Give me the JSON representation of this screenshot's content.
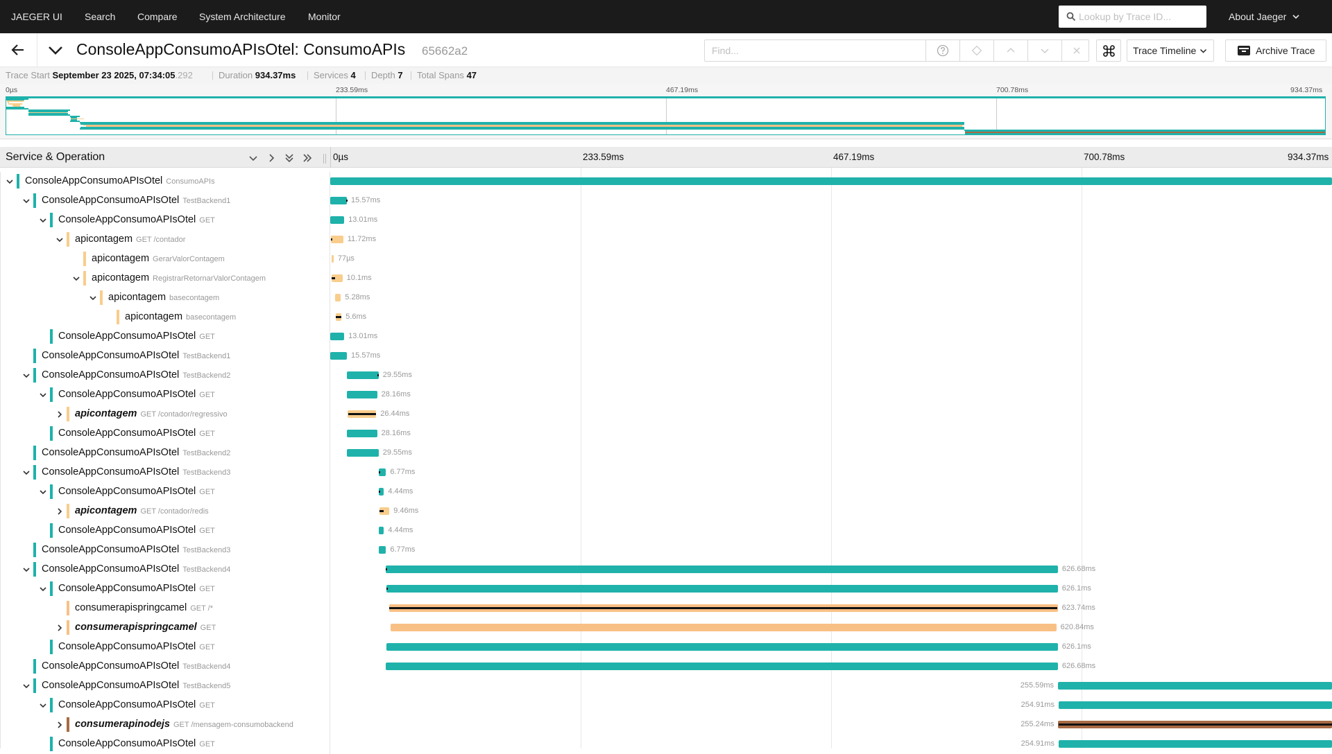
{
  "nav": {
    "brand": "JAEGER UI",
    "search": "Search",
    "compare": "Compare",
    "system_architecture": "System Architecture",
    "monitor": "Monitor",
    "lookup_placeholder": "Lookup by Trace ID...",
    "about": "About Jaeger"
  },
  "trace": {
    "title": "ConsoleAppConsumoAPIsOtel: ConsumoAPIs",
    "id": "65662a2",
    "find_placeholder": "Find...",
    "view_mode": "Trace Timeline",
    "archive_label": "Archive Trace"
  },
  "summary": {
    "trace_start_label": "Trace Start",
    "trace_start_value": "September 23 2025, 07:34:05",
    "trace_start_ms": ".292",
    "duration_label": "Duration",
    "duration_value": "934.37ms",
    "services_label": "Services",
    "services_value": "4",
    "depth_label": "Depth",
    "depth_value": "7",
    "total_spans_label": "Total Spans",
    "total_spans_value": "47"
  },
  "timeline": {
    "total_ms": 934.37,
    "ticks": [
      "0µs",
      "233.59ms",
      "467.19ms",
      "700.78ms",
      "934.37ms"
    ],
    "header_label": "Service & Operation"
  },
  "colors": {
    "console": "#1fb2aa",
    "apicontagem": "#f9cd8c",
    "consumerapispringcamel": "#f9c085",
    "consumerapinodejs": "#a86b44"
  },
  "spans": [
    {
      "depth": 0,
      "chevron": "open",
      "service": "ConsoleAppConsumoAPIsOtel",
      "op": "ConsumoAPIs",
      "svc": "console",
      "err": false,
      "start": 0,
      "dur": 934.37,
      "label": ""
    },
    {
      "depth": 1,
      "chevron": "open",
      "service": "ConsoleAppConsumoAPIsOtel",
      "op": "TestBackend1",
      "svc": "console",
      "err": false,
      "start": 0,
      "dur": 15.57,
      "label": "15.57ms",
      "inner": [
        14.8,
        15.57
      ]
    },
    {
      "depth": 2,
      "chevron": "open",
      "service": "ConsoleAppConsumoAPIsOtel",
      "op": "GET",
      "svc": "console",
      "err": false,
      "start": 0,
      "dur": 13.01,
      "label": "13.01ms"
    },
    {
      "depth": 3,
      "chevron": "open",
      "service": "apicontagem",
      "op": "GET /contador",
      "svc": "apicontagem",
      "err": false,
      "start": 0.4,
      "dur": 11.72,
      "label": "11.72ms",
      "inner": [
        0.8,
        2.2
      ]
    },
    {
      "depth": 4,
      "chevron": "none",
      "service": "apicontagem",
      "op": "GerarValorContagem",
      "svc": "apicontagem",
      "err": false,
      "start": 1.2,
      "dur": 0.077,
      "label": "77µs"
    },
    {
      "depth": 4,
      "chevron": "open",
      "service": "apicontagem",
      "op": "RegistrarRetornarValorContagem",
      "svc": "apicontagem",
      "err": false,
      "start": 1.3,
      "dur": 10.1,
      "label": "10.1ms",
      "inner": [
        1.5,
        4.5
      ]
    },
    {
      "depth": 5,
      "chevron": "open",
      "service": "apicontagem",
      "op": "basecontagem",
      "svc": "apicontagem",
      "err": false,
      "start": 4.6,
      "dur": 5.28,
      "label": "5.28ms"
    },
    {
      "depth": 6,
      "chevron": "none",
      "service": "apicontagem",
      "op": "basecontagem",
      "svc": "apicontagem",
      "err": false,
      "start": 4.9,
      "dur": 5.6,
      "label": "5.6ms",
      "inner": [
        4.9,
        10.5
      ]
    },
    {
      "depth": 2,
      "chevron": "none",
      "service": "ConsoleAppConsumoAPIsOtel",
      "op": "GET",
      "svc": "console",
      "err": false,
      "start": 0,
      "dur": 13.01,
      "label": "13.01ms"
    },
    {
      "depth": 1,
      "chevron": "none",
      "service": "ConsoleAppConsumoAPIsOtel",
      "op": "TestBackend1",
      "svc": "console",
      "err": false,
      "start": 0,
      "dur": 15.57,
      "label": "15.57ms"
    },
    {
      "depth": 1,
      "chevron": "open",
      "service": "ConsoleAppConsumoAPIsOtel",
      "op": "TestBackend2",
      "svc": "console",
      "err": false,
      "start": 15.6,
      "dur": 29.55,
      "label": "29.55ms",
      "inner": [
        43.9,
        45.15
      ]
    },
    {
      "depth": 2,
      "chevron": "open",
      "service": "ConsoleAppConsumoAPIsOtel",
      "op": "GET",
      "svc": "console",
      "err": false,
      "start": 15.6,
      "dur": 28.16,
      "label": "28.16ms"
    },
    {
      "depth": 3,
      "chevron": "closed",
      "service": "apicontagem",
      "op": "GET /contador/regressivo",
      "svc": "apicontagem",
      "err": true,
      "start": 16.4,
      "dur": 26.44,
      "label": "26.44ms",
      "inner": [
        16.6,
        42.7
      ]
    },
    {
      "depth": 2,
      "chevron": "none",
      "service": "ConsoleAppConsumoAPIsOtel",
      "op": "GET",
      "svc": "console",
      "err": false,
      "start": 15.6,
      "dur": 28.16,
      "label": "28.16ms"
    },
    {
      "depth": 1,
      "chevron": "none",
      "service": "ConsoleAppConsumoAPIsOtel",
      "op": "TestBackend2",
      "svc": "console",
      "err": false,
      "start": 15.6,
      "dur": 29.55,
      "label": "29.55ms"
    },
    {
      "depth": 1,
      "chevron": "open",
      "service": "ConsoleAppConsumoAPIsOtel",
      "op": "TestBackend3",
      "svc": "console",
      "err": false,
      "start": 45.2,
      "dur": 6.77,
      "label": "6.77ms",
      "inner": [
        45.2,
        46.4
      ]
    },
    {
      "depth": 2,
      "chevron": "open",
      "service": "ConsoleAppConsumoAPIsOtel",
      "op": "GET",
      "svc": "console",
      "err": false,
      "start": 45.6,
      "dur": 4.44,
      "label": "4.44ms",
      "inner": [
        45.6,
        46.6
      ]
    },
    {
      "depth": 3,
      "chevron": "closed",
      "service": "apicontagem",
      "op": "GET /contador/redis",
      "svc": "apicontagem",
      "err": true,
      "start": 45.7,
      "dur": 9.46,
      "label": "9.46ms",
      "inner": [
        46.1,
        49.6
      ]
    },
    {
      "depth": 2,
      "chevron": "none",
      "service": "ConsoleAppConsumoAPIsOtel",
      "op": "GET",
      "svc": "console",
      "err": false,
      "start": 45.6,
      "dur": 4.44,
      "label": "4.44ms"
    },
    {
      "depth": 1,
      "chevron": "none",
      "service": "ConsoleAppConsumoAPIsOtel",
      "op": "TestBackend3",
      "svc": "console",
      "err": false,
      "start": 45.2,
      "dur": 6.77,
      "label": "6.77ms"
    },
    {
      "depth": 1,
      "chevron": "open",
      "service": "ConsoleAppConsumoAPIsOtel",
      "op": "TestBackend4",
      "svc": "console",
      "err": false,
      "start": 52.0,
      "dur": 626.68,
      "label": "626.68ms",
      "inner": [
        52.0,
        53.2
      ]
    },
    {
      "depth": 2,
      "chevron": "open",
      "service": "ConsoleAppConsumoAPIsOtel",
      "op": "GET",
      "svc": "console",
      "err": false,
      "start": 52.5,
      "dur": 626.1,
      "label": "626.1ms",
      "inner": [
        52.5,
        53.5
      ]
    },
    {
      "depth": 3,
      "chevron": "none",
      "service": "consumerapispringcamel",
      "op": "GET /*",
      "svc": "consumerapispringcamel",
      "err": false,
      "start": 54.8,
      "dur": 623.74,
      "label": "623.74ms",
      "inner": [
        55.2,
        678.2
      ]
    },
    {
      "depth": 3,
      "chevron": "closed",
      "service": "consumerapispringcamel",
      "op": "GET",
      "svc": "consumerapispringcamel",
      "err": true,
      "start": 56.4,
      "dur": 620.84,
      "label": "620.84ms"
    },
    {
      "depth": 2,
      "chevron": "none",
      "service": "ConsoleAppConsumoAPIsOtel",
      "op": "GET",
      "svc": "console",
      "err": false,
      "start": 52.5,
      "dur": 626.1,
      "label": "626.1ms"
    },
    {
      "depth": 1,
      "chevron": "none",
      "service": "ConsoleAppConsumoAPIsOtel",
      "op": "TestBackend4",
      "svc": "console",
      "err": false,
      "start": 52.0,
      "dur": 626.68,
      "label": "626.68ms"
    },
    {
      "depth": 1,
      "chevron": "open",
      "service": "ConsoleAppConsumoAPIsOtel",
      "op": "TestBackend5",
      "svc": "console",
      "err": false,
      "start": 678.78,
      "dur": 255.59,
      "label": "255.59ms",
      "labelLeft": true
    },
    {
      "depth": 2,
      "chevron": "open",
      "service": "ConsoleAppConsumoAPIsOtel",
      "op": "GET",
      "svc": "console",
      "err": false,
      "start": 679.4,
      "dur": 254.91,
      "label": "254.91ms",
      "labelLeft": true
    },
    {
      "depth": 3,
      "chevron": "closed",
      "service": "consumerapinodejs",
      "op": "GET /mensagem-consumobackend",
      "svc": "consumerapinodejs",
      "err": true,
      "start": 679.1,
      "dur": 255.24,
      "label": "255.24ms",
      "labelLeft": true,
      "inner": [
        679.3,
        934.2
      ]
    },
    {
      "depth": 2,
      "chevron": "none",
      "service": "ConsoleAppConsumoAPIsOtel",
      "op": "GET",
      "svc": "console",
      "err": false,
      "start": 679.4,
      "dur": 254.91,
      "label": "254.91ms",
      "labelLeft": true
    }
  ]
}
